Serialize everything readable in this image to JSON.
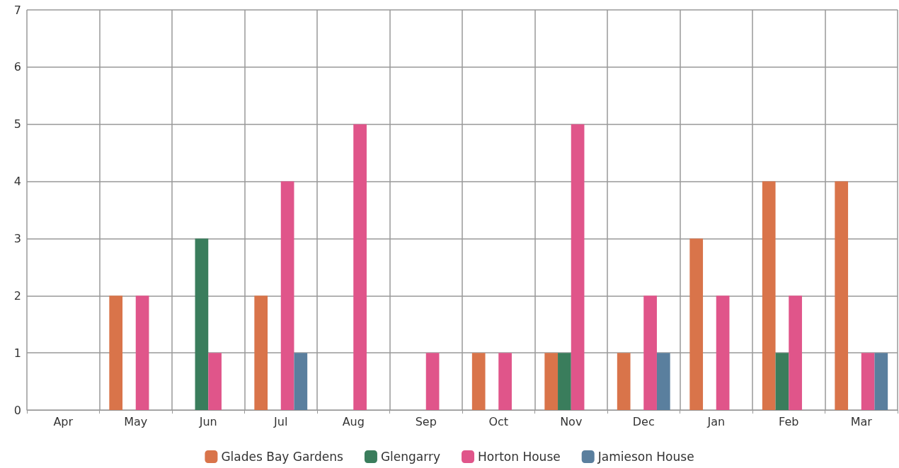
{
  "chart_data": {
    "type": "bar",
    "categories": [
      "Apr",
      "May",
      "Jun",
      "Jul",
      "Aug",
      "Sep",
      "Oct",
      "Nov",
      "Dec",
      "Jan",
      "Feb",
      "Mar"
    ],
    "series": [
      {
        "name": "Glades Bay Gardens",
        "color": "#d9744a",
        "values": [
          0,
          2,
          0,
          2,
          0,
          0,
          1,
          1,
          1,
          3,
          4,
          4
        ]
      },
      {
        "name": "Glengarry",
        "color": "#3a7d5c",
        "values": [
          0,
          0,
          3,
          0,
          0,
          0,
          0,
          1,
          0,
          0,
          1,
          0
        ]
      },
      {
        "name": "Horton House",
        "color": "#e0558a",
        "values": [
          0,
          2,
          1,
          4,
          5,
          1,
          1,
          5,
          2,
          2,
          2,
          1
        ]
      },
      {
        "name": "Jamieson House",
        "color": "#5a7f9e",
        "values": [
          0,
          0,
          0,
          1,
          0,
          0,
          0,
          0,
          1,
          0,
          0,
          1
        ]
      }
    ],
    "ylim": [
      0,
      7
    ],
    "yticks": [
      0,
      1,
      2,
      3,
      4,
      5,
      6,
      7
    ],
    "grid": true,
    "legend": "bottom"
  }
}
